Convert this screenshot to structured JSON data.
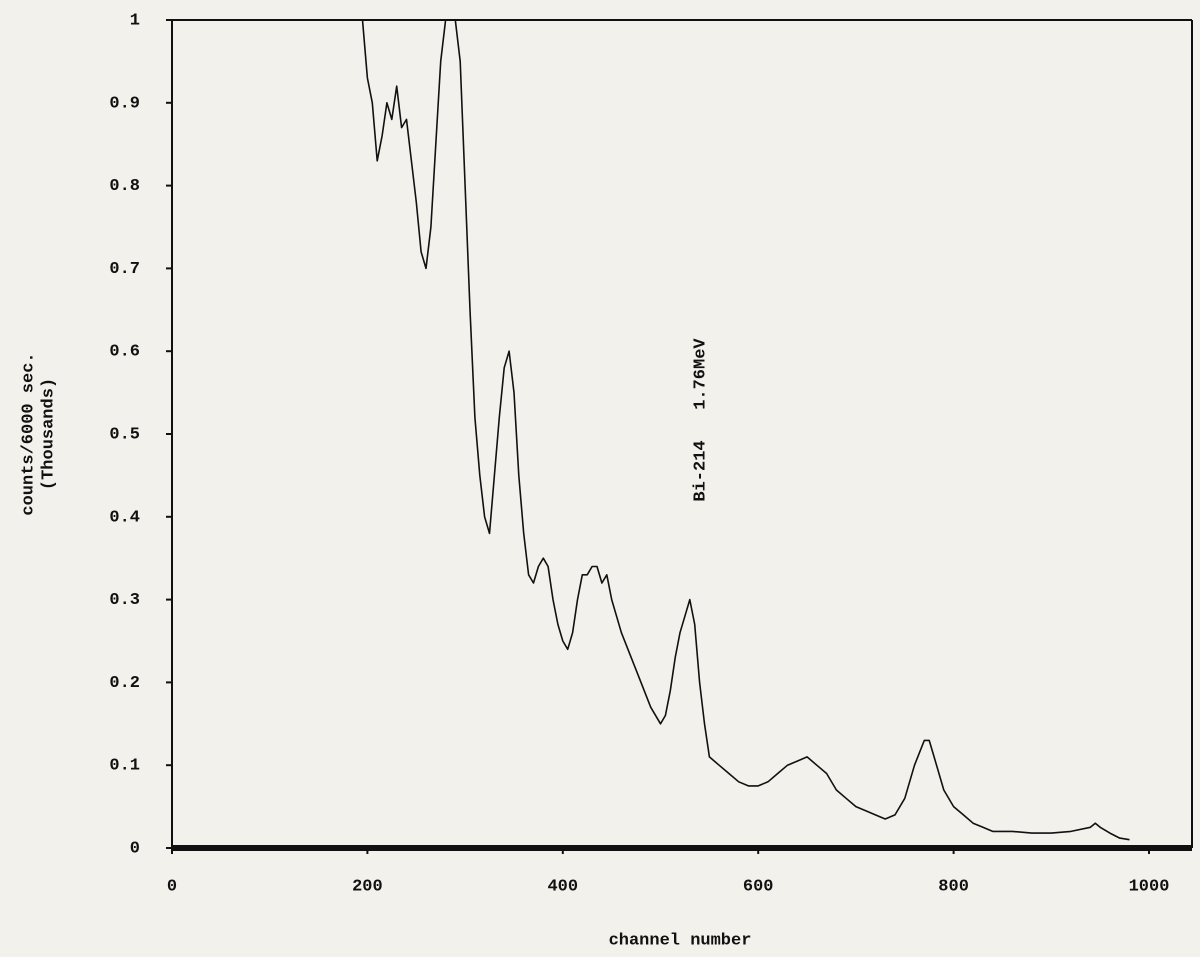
{
  "chart_data": {
    "type": "line",
    "x_label": "channel number",
    "y_label": [
      "counts/6000 sec.",
      "(Thousands)"
    ],
    "annotation": {
      "text": "Bi-214   1.76MeV",
      "x": 530
    },
    "color": "#111111",
    "xlim": [
      0,
      1044
    ],
    "xticks": [
      0,
      200,
      400,
      600,
      800,
      1000
    ],
    "ylim": [
      0,
      1
    ],
    "yticks": [
      0,
      0.1,
      0.2,
      0.3,
      0.4,
      0.5,
      0.6,
      0.7,
      0.8,
      0.9,
      1
    ],
    "x": [
      195,
      200,
      205,
      210,
      215,
      220,
      225,
      230,
      235,
      240,
      245,
      250,
      255,
      260,
      265,
      270,
      275,
      280,
      285,
      290,
      295,
      300,
      305,
      310,
      315,
      320,
      325,
      330,
      335,
      340,
      345,
      350,
      355,
      360,
      365,
      370,
      375,
      380,
      385,
      390,
      395,
      400,
      405,
      410,
      415,
      420,
      425,
      430,
      435,
      440,
      445,
      450,
      460,
      470,
      480,
      490,
      500,
      505,
      510,
      515,
      520,
      525,
      530,
      535,
      540,
      545,
      550,
      560,
      570,
      580,
      590,
      600,
      610,
      620,
      630,
      640,
      650,
      660,
      670,
      680,
      690,
      700,
      710,
      720,
      730,
      740,
      750,
      760,
      770,
      775,
      780,
      790,
      800,
      810,
      820,
      830,
      840,
      860,
      880,
      900,
      920,
      940,
      945,
      950,
      960,
      970,
      980
    ],
    "values": [
      1.0,
      0.93,
      0.9,
      0.83,
      0.86,
      0.9,
      0.88,
      0.92,
      0.87,
      0.88,
      0.83,
      0.78,
      0.72,
      0.7,
      0.75,
      0.85,
      0.95,
      1.0,
      1.0,
      1.0,
      0.95,
      0.8,
      0.65,
      0.52,
      0.45,
      0.4,
      0.38,
      0.45,
      0.52,
      0.58,
      0.6,
      0.55,
      0.45,
      0.38,
      0.33,
      0.32,
      0.34,
      0.35,
      0.34,
      0.3,
      0.27,
      0.25,
      0.24,
      0.26,
      0.3,
      0.33,
      0.33,
      0.34,
      0.34,
      0.32,
      0.33,
      0.3,
      0.26,
      0.23,
      0.2,
      0.17,
      0.15,
      0.16,
      0.19,
      0.23,
      0.26,
      0.28,
      0.3,
      0.27,
      0.2,
      0.15,
      0.11,
      0.1,
      0.09,
      0.08,
      0.075,
      0.075,
      0.08,
      0.09,
      0.1,
      0.105,
      0.11,
      0.1,
      0.09,
      0.07,
      0.06,
      0.05,
      0.045,
      0.04,
      0.035,
      0.04,
      0.06,
      0.1,
      0.13,
      0.13,
      0.11,
      0.07,
      0.05,
      0.04,
      0.03,
      0.025,
      0.02,
      0.02,
      0.018,
      0.018,
      0.02,
      0.025,
      0.03,
      0.025,
      0.018,
      0.012,
      0.01
    ]
  }
}
